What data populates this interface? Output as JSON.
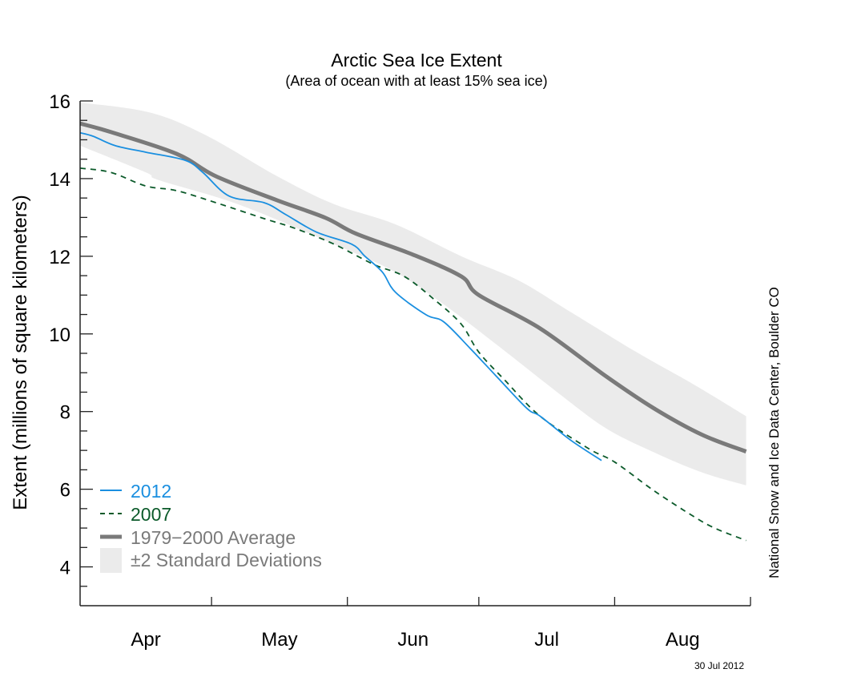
{
  "chart_data": {
    "type": "line",
    "title": "Arctic Sea Ice Extent",
    "subtitle": "(Area of ocean with at least 15% sea ice)",
    "ylabel": "Extent (millions of square kilometers)",
    "xlabel": "",
    "ylim": [
      3,
      16
    ],
    "xlim": [
      "04-01",
      "09-01"
    ],
    "yticks": [
      4,
      6,
      8,
      10,
      12,
      14,
      16
    ],
    "yminor_step": 0.5,
    "xtick_labels": [
      "Apr",
      "May",
      "Jun",
      "Jul",
      "Aug"
    ],
    "grid": false,
    "legend_placement": "bottom-left",
    "credit": "National Snow and Ice Data Center, Boulder CO",
    "date_stamp": "30 Jul 2012",
    "colors": {
      "s2012": "#1a8fe0",
      "s2007": "#0b5a2a",
      "average": "#7a7a7a",
      "band": "#ebebeb"
    },
    "band": {
      "name": "±2 Standard Deviations",
      "upper": [
        [
          "04-01",
          15.96
        ],
        [
          "04-17",
          15.7
        ],
        [
          "04-30",
          15.1
        ],
        [
          "05-16",
          14.06
        ],
        [
          "05-29",
          13.34
        ],
        [
          "06-12",
          12.82
        ],
        [
          "06-27",
          12.0
        ],
        [
          "07-10",
          11.38
        ],
        [
          "07-22",
          10.56
        ],
        [
          "08-06",
          9.53
        ],
        [
          "08-19",
          8.7
        ],
        [
          "08-31",
          7.88
        ]
      ],
      "lower": [
        [
          "04-01",
          14.85
        ],
        [
          "04-16",
          14.16
        ],
        [
          "04-19",
          13.96
        ],
        [
          "05-07",
          13.34
        ],
        [
          "05-29",
          12.31
        ],
        [
          "06-12",
          11.59
        ],
        [
          "06-23",
          10.76
        ],
        [
          "07-05",
          9.73
        ],
        [
          "07-19",
          8.49
        ],
        [
          "07-30",
          7.57
        ],
        [
          "08-10",
          6.95
        ],
        [
          "08-21",
          6.43
        ],
        [
          "08-31",
          6.1
        ]
      ]
    },
    "series": [
      {
        "name": "2012",
        "style": "solid",
        "points": [
          [
            "04-01",
            15.18
          ],
          [
            "04-04",
            15.09
          ],
          [
            "04-09",
            14.85
          ],
          [
            "04-16",
            14.68
          ],
          [
            "04-25",
            14.47
          ],
          [
            "04-29",
            14.16
          ],
          [
            "05-05",
            13.55
          ],
          [
            "05-13",
            13.38
          ],
          [
            "05-18",
            13.07
          ],
          [
            "05-25",
            12.62
          ],
          [
            "06-02",
            12.31
          ],
          [
            "06-05",
            12.0
          ],
          [
            "06-09",
            11.59
          ],
          [
            "06-12",
            11.07
          ],
          [
            "06-19",
            10.49
          ],
          [
            "06-23",
            10.31
          ],
          [
            "06-29",
            9.63
          ],
          [
            "07-05",
            8.91
          ],
          [
            "07-12",
            8.08
          ],
          [
            "07-15",
            7.88
          ],
          [
            "07-22",
            7.26
          ],
          [
            "07-29",
            6.74
          ]
        ]
      },
      {
        "name": "2007",
        "style": "dashed",
        "points": [
          [
            "04-01",
            14.27
          ],
          [
            "04-08",
            14.16
          ],
          [
            "04-16",
            13.81
          ],
          [
            "04-23",
            13.69
          ],
          [
            "05-02",
            13.38
          ],
          [
            "05-13",
            12.97
          ],
          [
            "05-20",
            12.72
          ],
          [
            "05-29",
            12.31
          ],
          [
            "06-07",
            11.79
          ],
          [
            "06-14",
            11.48
          ],
          [
            "06-21",
            10.87
          ],
          [
            "06-27",
            10.25
          ],
          [
            "07-01",
            9.53
          ],
          [
            "07-07",
            8.8
          ],
          [
            "07-15",
            7.88
          ],
          [
            "07-26",
            7.05
          ],
          [
            "08-01",
            6.7
          ],
          [
            "08-10",
            5.96
          ],
          [
            "08-19",
            5.3
          ],
          [
            "08-24",
            4.99
          ],
          [
            "08-31",
            4.68
          ]
        ]
      },
      {
        "name": "1979−2000 Average",
        "style": "thick",
        "points": [
          [
            "04-01",
            15.42
          ],
          [
            "04-08",
            15.2
          ],
          [
            "04-23",
            14.64
          ],
          [
            "05-02",
            14.06
          ],
          [
            "05-16",
            13.44
          ],
          [
            "05-27",
            12.99
          ],
          [
            "06-03",
            12.58
          ],
          [
            "06-16",
            12.04
          ],
          [
            "06-27",
            11.48
          ],
          [
            "07-01",
            11.0
          ],
          [
            "07-15",
            10.14
          ],
          [
            "07-30",
            8.91
          ],
          [
            "08-10",
            8.08
          ],
          [
            "08-21",
            7.4
          ],
          [
            "08-31",
            6.97
          ]
        ]
      }
    ]
  }
}
